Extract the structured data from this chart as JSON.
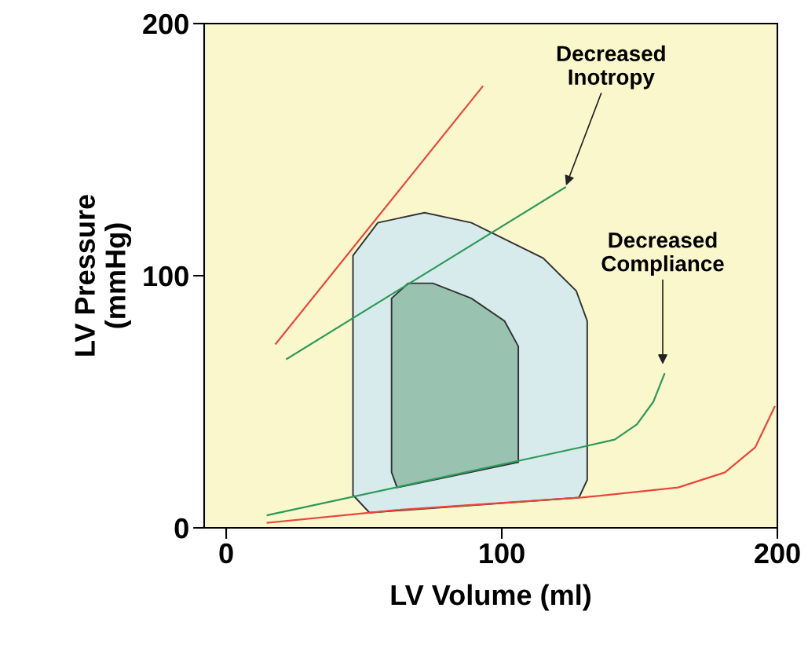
{
  "chart_data": {
    "type": "line",
    "xlabel": "LV Volume (ml)",
    "ylabel": "LV Pressure\n(mmHg)",
    "xlim": [
      -8,
      200
    ],
    "ylim": [
      0,
      200
    ],
    "xticks": [
      0,
      100,
      200
    ],
    "yticks": [
      0,
      100,
      200
    ],
    "grid": false,
    "marker": "none",
    "line_style": "solid",
    "series": [
      {
        "type": "area",
        "color": "#d8ebec",
        "x": [
          52,
          46,
          46,
          55,
          72,
          89,
          115,
          127,
          131,
          131,
          128,
          52
        ],
        "values": [
          6,
          13,
          108,
          121,
          125,
          121,
          107,
          94,
          82,
          19,
          12,
          6
        ]
      },
      {
        "type": "area",
        "color": "#99c2b0",
        "x": [
          62,
          60,
          60,
          66,
          75,
          89,
          101,
          106,
          106,
          62
        ],
        "values": [
          16,
          22,
          91,
          97,
          97,
          91,
          82,
          72,
          26,
          16
        ]
      },
      {
        "color": "#e8483c",
        "x": [
          18,
          93
        ],
        "values": [
          73,
          175
        ]
      },
      {
        "color": "#2e9a5a",
        "x": [
          22,
          123
        ],
        "values": [
          67,
          135
        ]
      },
      {
        "color": "#2e9a5a",
        "x": [
          15,
          129,
          141,
          149,
          155,
          159
        ],
        "values": [
          5,
          32,
          35,
          41,
          50,
          61
        ]
      },
      {
        "color": "#e8483c",
        "x": [
          15,
          61,
          129,
          164,
          181,
          192,
          199
        ],
        "values": [
          2,
          7,
          12,
          16,
          22,
          32,
          48
        ]
      }
    ],
    "annotations": [
      "Decreased\nInotropy",
      "Decreased\nCompliance"
    ]
  }
}
